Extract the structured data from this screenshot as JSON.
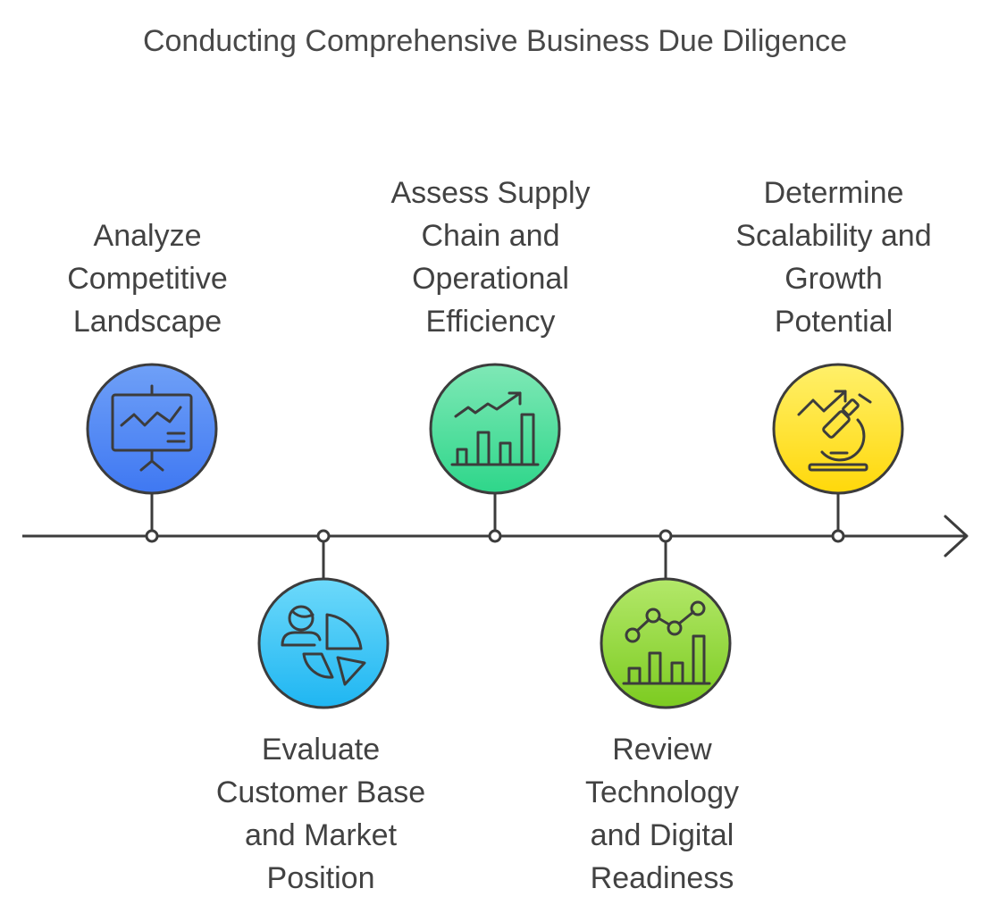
{
  "title": "Conducting Comprehensive Business Due Diligence",
  "steps": [
    {
      "lines": [
        "Analyze",
        "Competitive",
        "Landscape"
      ],
      "icon": "presentation-chart-icon",
      "color": "#4F86F5",
      "position": "above"
    },
    {
      "lines": [
        "Evaluate",
        "Customer Base",
        "and Market",
        "Position"
      ],
      "icon": "customer-pie-chart-icon",
      "color": "#2EC3F5",
      "position": "below"
    },
    {
      "lines": [
        "Assess Supply",
        "Chain and",
        "Operational",
        "Efficiency"
      ],
      "icon": "growth-bar-chart-icon",
      "color": "#3DDB96",
      "position": "above"
    },
    {
      "lines": [
        "Review",
        "Technology",
        "and Digital",
        "Readiness"
      ],
      "icon": "line-bar-chart-icon",
      "color": "#8BD62E",
      "position": "below"
    },
    {
      "lines": [
        "Determine",
        "Scalability and",
        "Growth",
        "Potential"
      ],
      "icon": "microscope-growth-icon",
      "color": "#FFE01F",
      "position": "above"
    }
  ]
}
